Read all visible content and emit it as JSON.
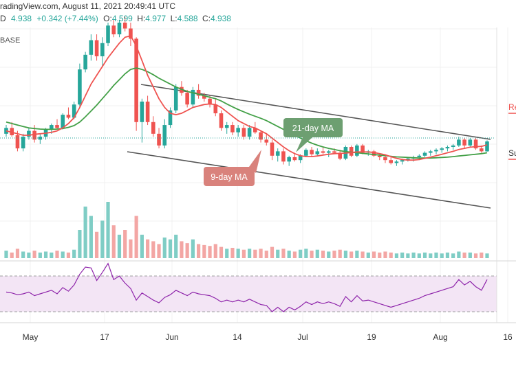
{
  "header": {
    "line1": "radingView.com, August 11, 2021 20:49:41 UTC",
    "prefix": "D",
    "last": "4.938",
    "change": "+0.342 (+7.44%)",
    "o_label": "O:",
    "o_value": "4.599",
    "h_label": "H:",
    "h_value": "4.977",
    "l_label": "L:",
    "l_value": "4.588",
    "c_label": "C:",
    "c_value": "4.938",
    "base": "BASE"
  },
  "right_labels": {
    "resistance": "Re",
    "support": "Su"
  },
  "annotations": {
    "ma21": "21-day MA",
    "ma9": "9-day MA"
  },
  "colors": {
    "up": "#26a69a",
    "down": "#ef5350",
    "ma9": "#ef5350",
    "ma21": "#43a047",
    "channel": "#555555",
    "rsi": "#8e24aa",
    "rsi_band": "#f3e5f5"
  },
  "chart_data": {
    "type": "candlestick",
    "x_ticks": [
      "May",
      "17",
      "Jun",
      "14",
      "Jul",
      "19",
      "Aug",
      "16"
    ],
    "candles": [
      [
        5.2,
        5.5,
        5.1,
        5.4
      ],
      [
        5.4,
        5.6,
        5.1,
        5.15
      ],
      [
        5.15,
        5.3,
        4.6,
        4.7
      ],
      [
        4.7,
        5.2,
        4.6,
        5.1
      ],
      [
        5.1,
        5.4,
        5.0,
        5.3
      ],
      [
        5.3,
        5.5,
        4.9,
        5.0
      ],
      [
        5.0,
        5.2,
        4.85,
        5.1
      ],
      [
        5.1,
        5.4,
        5.0,
        5.35
      ],
      [
        5.35,
        5.55,
        5.2,
        5.5
      ],
      [
        5.5,
        5.7,
        5.35,
        5.4
      ],
      [
        5.4,
        5.9,
        5.35,
        5.85
      ],
      [
        5.85,
        6.1,
        5.7,
        5.75
      ],
      [
        5.75,
        6.3,
        5.7,
        6.2
      ],
      [
        6.2,
        7.6,
        6.1,
        7.4
      ],
      [
        7.4,
        8.0,
        7.3,
        7.9
      ],
      [
        7.9,
        8.6,
        7.7,
        8.4
      ],
      [
        8.4,
        8.6,
        7.7,
        7.85
      ],
      [
        7.85,
        8.5,
        7.5,
        8.3
      ],
      [
        8.3,
        9.0,
        8.2,
        8.9
      ],
      [
        8.9,
        9.1,
        8.5,
        8.6
      ],
      [
        8.6,
        9.1,
        8.5,
        9.0
      ],
      [
        9.0,
        9.2,
        8.7,
        8.8
      ],
      [
        8.8,
        9.0,
        8.2,
        8.45
      ],
      [
        8.45,
        8.5,
        5.3,
        5.6
      ],
      [
        5.6,
        6.4,
        4.9,
        6.3
      ],
      [
        6.3,
        6.5,
        5.5,
        5.6
      ],
      [
        5.6,
        5.8,
        5.1,
        5.2
      ],
      [
        5.2,
        5.4,
        4.7,
        4.8
      ],
      [
        4.8,
        5.7,
        4.7,
        5.5
      ],
      [
        5.5,
        6.1,
        5.4,
        6.0
      ],
      [
        6.0,
        6.9,
        5.9,
        6.8
      ],
      [
        6.8,
        7.0,
        6.5,
        6.6
      ],
      [
        6.6,
        6.7,
        6.1,
        6.2
      ],
      [
        6.2,
        6.8,
        6.1,
        6.7
      ],
      [
        6.7,
        6.9,
        6.4,
        6.5
      ],
      [
        6.5,
        6.6,
        6.3,
        6.4
      ],
      [
        6.4,
        6.5,
        6.1,
        6.2
      ],
      [
        6.2,
        6.4,
        5.8,
        5.9
      ],
      [
        5.9,
        6.0,
        5.3,
        5.4
      ],
      [
        5.4,
        5.6,
        5.2,
        5.5
      ],
      [
        5.5,
        5.6,
        5.15,
        5.25
      ],
      [
        5.25,
        5.5,
        5.1,
        5.4
      ],
      [
        5.4,
        5.5,
        5.0,
        5.1
      ],
      [
        5.1,
        5.5,
        5.0,
        5.4
      ],
      [
        5.4,
        5.6,
        5.2,
        5.25
      ],
      [
        5.25,
        5.3,
        4.9,
        5.0
      ],
      [
        5.0,
        5.2,
        4.8,
        4.9
      ],
      [
        4.9,
        5.0,
        4.3,
        4.45
      ],
      [
        4.45,
        4.7,
        4.25,
        4.6
      ],
      [
        4.6,
        4.7,
        4.15,
        4.25
      ],
      [
        4.25,
        4.45,
        4.1,
        4.4
      ],
      [
        4.4,
        4.55,
        4.25,
        4.3
      ],
      [
        4.3,
        4.5,
        4.2,
        4.45
      ],
      [
        4.45,
        4.7,
        4.4,
        4.65
      ],
      [
        4.65,
        4.75,
        4.4,
        4.5
      ],
      [
        4.5,
        4.7,
        4.45,
        4.6
      ],
      [
        4.6,
        4.75,
        4.5,
        4.55
      ],
      [
        4.55,
        4.65,
        4.4,
        4.6
      ],
      [
        4.6,
        4.7,
        4.5,
        4.55
      ],
      [
        4.55,
        4.65,
        4.3,
        4.35
      ],
      [
        4.35,
        4.8,
        4.3,
        4.75
      ],
      [
        4.75,
        4.8,
        4.4,
        4.45
      ],
      [
        4.45,
        4.85,
        4.4,
        4.8
      ],
      [
        4.8,
        4.85,
        4.5,
        4.55
      ],
      [
        4.55,
        4.65,
        4.45,
        4.6
      ],
      [
        4.6,
        4.65,
        4.4,
        4.45
      ],
      [
        4.45,
        4.5,
        4.3,
        4.4
      ],
      [
        4.4,
        4.5,
        4.2,
        4.3
      ],
      [
        4.3,
        4.4,
        4.15,
        4.2
      ],
      [
        4.2,
        4.3,
        4.1,
        4.25
      ],
      [
        4.25,
        4.35,
        4.15,
        4.3
      ],
      [
        4.3,
        4.4,
        4.25,
        4.35
      ],
      [
        4.35,
        4.45,
        4.25,
        4.4
      ],
      [
        4.4,
        4.5,
        4.3,
        4.45
      ],
      [
        4.45,
        4.6,
        4.4,
        4.55
      ],
      [
        4.55,
        4.65,
        4.45,
        4.6
      ],
      [
        4.6,
        4.7,
        4.5,
        4.65
      ],
      [
        4.65,
        4.75,
        4.55,
        4.7
      ],
      [
        4.7,
        4.8,
        4.6,
        4.75
      ],
      [
        4.75,
        4.85,
        4.65,
        4.8
      ],
      [
        4.8,
        5.1,
        4.75,
        5.0
      ],
      [
        5.0,
        5.05,
        4.7,
        4.8
      ],
      [
        4.8,
        5.05,
        4.75,
        5.0
      ],
      [
        5.0,
        5.05,
        4.65,
        4.7
      ],
      [
        4.7,
        4.8,
        4.55,
        4.6
      ],
      [
        4.599,
        4.977,
        4.588,
        4.938
      ]
    ],
    "volume": [
      8,
      6,
      10,
      7,
      6,
      8,
      6,
      7,
      6,
      8,
      7,
      6,
      9,
      30,
      55,
      45,
      28,
      40,
      60,
      35,
      25,
      30,
      20,
      45,
      25,
      20,
      18,
      15,
      22,
      20,
      25,
      18,
      16,
      20,
      15,
      14,
      13,
      15,
      12,
      10,
      11,
      10,
      9,
      10,
      9,
      10,
      8,
      12,
      9,
      10,
      8,
      7,
      9,
      10,
      8,
      9,
      8,
      7,
      8,
      9,
      8,
      7,
      8,
      7,
      6,
      7,
      6,
      7,
      6,
      5,
      6,
      5,
      6,
      5,
      6,
      5,
      6,
      5,
      6,
      5,
      7,
      6,
      6,
      5,
      6,
      5
    ],
    "ma9": [
      5.3,
      5.25,
      5.2,
      5.15,
      5.15,
      5.18,
      5.2,
      5.22,
      5.25,
      5.3,
      5.4,
      5.55,
      5.75,
      6.1,
      6.5,
      6.9,
      7.2,
      7.5,
      7.8,
      8.05,
      8.3,
      8.5,
      8.55,
      8.2,
      7.7,
      7.2,
      6.8,
      6.4,
      6.1,
      5.9,
      5.85,
      5.9,
      6.0,
      6.1,
      6.15,
      6.2,
      6.22,
      6.2,
      6.1,
      5.95,
      5.8,
      5.65,
      5.55,
      5.45,
      5.4,
      5.3,
      5.2,
      5.05,
      4.9,
      4.75,
      4.62,
      4.52,
      4.45,
      4.42,
      4.42,
      4.44,
      4.47,
      4.5,
      4.52,
      4.53,
      4.54,
      4.56,
      4.58,
      4.58,
      4.58,
      4.56,
      4.52,
      4.48,
      4.42,
      4.36,
      4.32,
      4.3,
      4.3,
      4.32,
      4.36,
      4.4,
      4.45,
      4.5,
      4.55,
      4.6,
      4.66,
      4.7,
      4.74,
      4.76,
      4.77,
      4.82
    ],
    "ma21": [
      5.6,
      5.55,
      5.5,
      5.45,
      5.4,
      5.38,
      5.36,
      5.35,
      5.35,
      5.36,
      5.38,
      5.42,
      5.48,
      5.6,
      5.78,
      5.98,
      6.18,
      6.4,
      6.62,
      6.85,
      7.05,
      7.25,
      7.4,
      7.45,
      7.4,
      7.32,
      7.22,
      7.1,
      7.0,
      6.9,
      6.8,
      6.72,
      6.65,
      6.6,
      6.55,
      6.5,
      6.45,
      6.4,
      6.32,
      6.22,
      6.12,
      6.03,
      5.95,
      5.87,
      5.8,
      5.73,
      5.65,
      5.55,
      5.45,
      5.35,
      5.25,
      5.15,
      5.05,
      4.96,
      4.88,
      4.81,
      4.75,
      4.7,
      4.66,
      4.62,
      4.59,
      4.57,
      4.55,
      4.53,
      4.51,
      4.49,
      4.47,
      4.45,
      4.43,
      4.41,
      4.4,
      4.39,
      4.38,
      4.37,
      4.37,
      4.37,
      4.38,
      4.39,
      4.4,
      4.42,
      4.44,
      4.46,
      4.48,
      4.5,
      4.52,
      4.55
    ],
    "rsi": [
      52,
      51,
      49,
      50,
      52,
      48,
      50,
      52,
      54,
      50,
      57,
      53,
      60,
      72,
      80,
      79,
      65,
      74,
      84,
      66,
      70,
      62,
      56,
      43,
      51,
      47,
      43,
      40,
      46,
      49,
      54,
      51,
      48,
      52,
      50,
      49,
      48,
      45,
      41,
      43,
      41,
      43,
      41,
      44,
      41,
      38,
      37,
      30,
      35,
      30,
      35,
      32,
      36,
      41,
      38,
      41,
      39,
      41,
      39,
      36,
      47,
      41,
      48,
      42,
      43,
      41,
      39,
      37,
      35,
      37,
      39,
      41,
      43,
      45,
      48,
      50,
      52,
      54,
      56,
      58,
      66,
      60,
      64,
      58,
      54,
      66
    ]
  }
}
